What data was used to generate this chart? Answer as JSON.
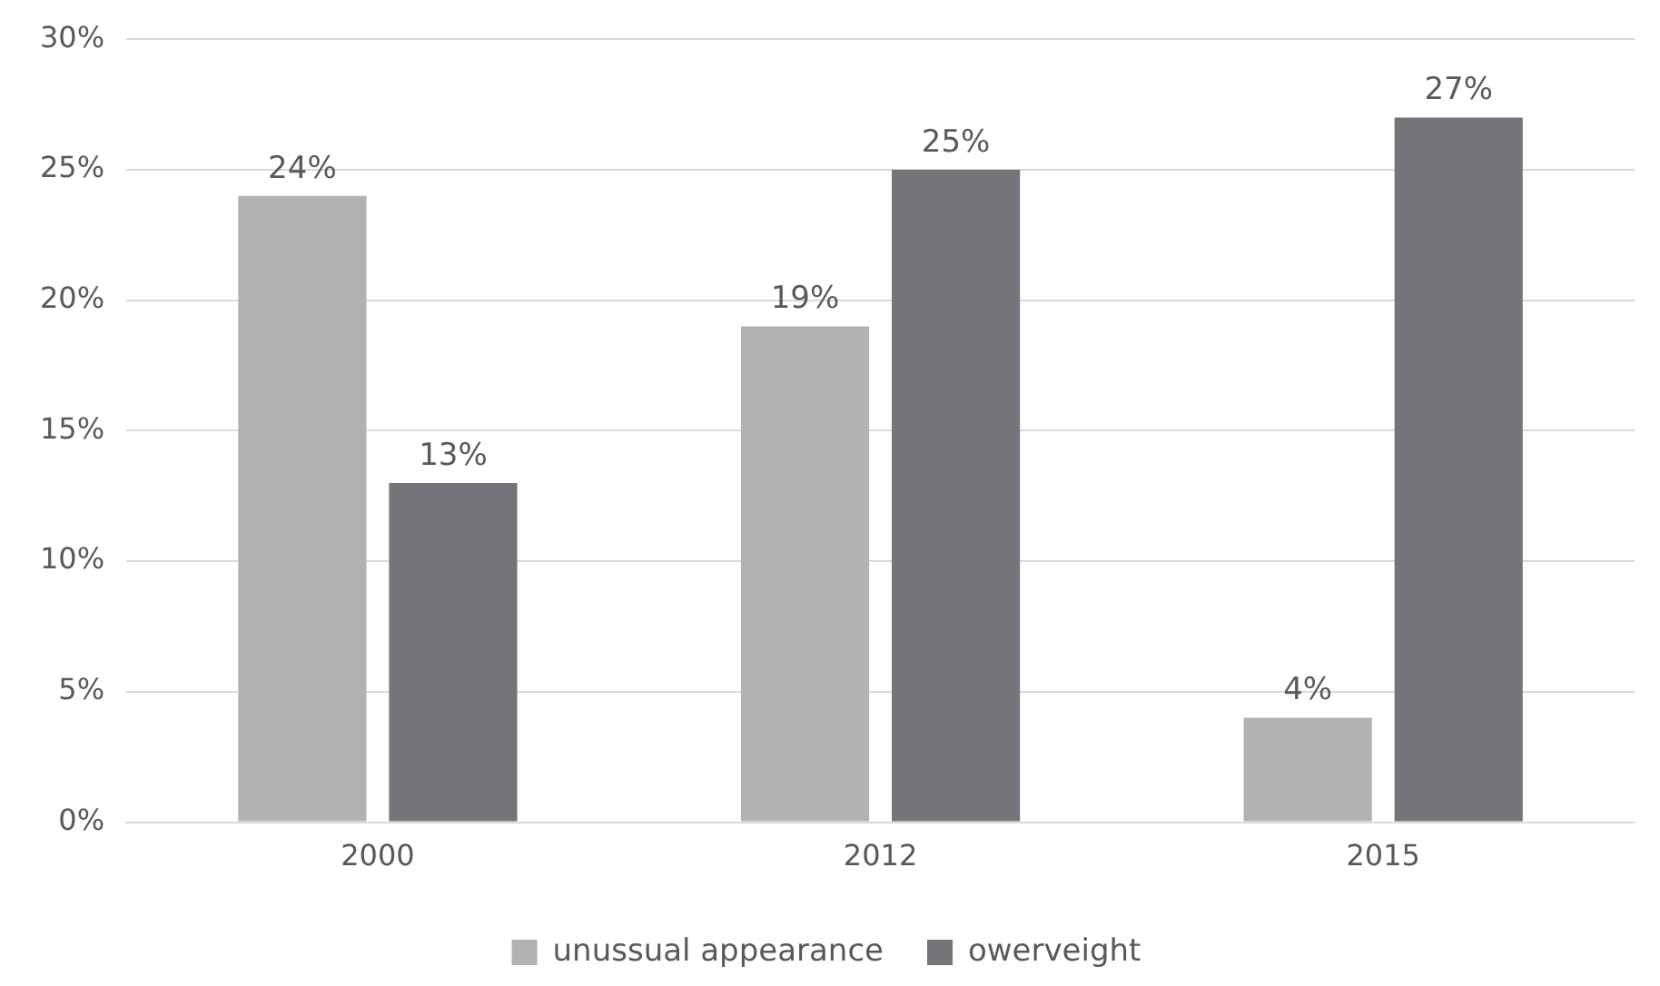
{
  "chart_data": {
    "type": "bar",
    "categories": [
      "2000",
      "2012",
      "2015"
    ],
    "series": [
      {
        "name": "unussual appearance",
        "color": "#b2b2b4",
        "values": [
          24,
          19,
          4
        ],
        "value_labels": [
          "24%",
          "19%",
          "4%"
        ]
      },
      {
        "name": "owerveight",
        "color": "#747579",
        "values": [
          13,
          25,
          27
        ],
        "value_labels": [
          "13%",
          "25%",
          "27%"
        ]
      }
    ],
    "ylim": [
      0,
      30
    ],
    "yticks": [
      {
        "value": 0,
        "label": "0%"
      },
      {
        "value": 5,
        "label": "5%"
      },
      {
        "value": 10,
        "label": "10%"
      },
      {
        "value": 15,
        "label": "15%"
      },
      {
        "value": 20,
        "label": "20%"
      },
      {
        "value": 25,
        "label": "25%"
      },
      {
        "value": 30,
        "label": "30%"
      }
    ],
    "grid": "y",
    "legend": "bottom"
  }
}
